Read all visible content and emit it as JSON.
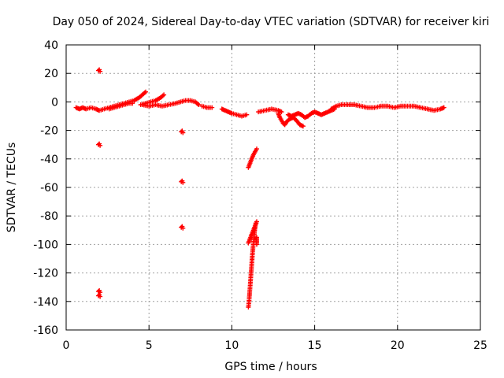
{
  "chart_data": {
    "type": "scatter",
    "title": "Day 050 of 2024, Sidereal Day-to-day VTEC variation (SDTVAR) for receiver kiri",
    "xlabel": "GPS time / hours",
    "ylabel": "SDTVAR / TECUs",
    "xlim": [
      0,
      25
    ],
    "ylim": [
      -160,
      40
    ],
    "xticks": [
      0,
      5,
      10,
      15,
      20,
      25
    ],
    "yticks": [
      40,
      20,
      0,
      -20,
      -40,
      -60,
      -80,
      -100,
      -120,
      -140,
      -160
    ],
    "grid": true,
    "marker": "+",
    "series_color": "#ff0000",
    "series": [
      {
        "name": "SDTVAR",
        "segments": [
          [
            [
              0.6,
              -4
            ],
            [
              0.8,
              -5
            ],
            [
              1.0,
              -4
            ],
            [
              1.2,
              -5
            ],
            [
              1.5,
              -4
            ],
            [
              1.8,
              -5
            ],
            [
              2.0,
              -6
            ],
            [
              2.3,
              -5
            ],
            [
              2.6,
              -4
            ],
            [
              2.9,
              -3
            ],
            [
              3.2,
              -2
            ],
            [
              3.5,
              -1
            ],
            [
              3.8,
              0
            ],
            [
              4.1,
              1
            ],
            [
              4.4,
              3
            ],
            [
              4.6,
              5
            ],
            [
              4.8,
              7
            ]
          ],
          [
            [
              2.6,
              -5
            ],
            [
              2.9,
              -4
            ],
            [
              3.2,
              -3
            ],
            [
              3.5,
              -2
            ],
            [
              3.8,
              -1
            ],
            [
              4.0,
              -1
            ]
          ],
          [
            [
              4.5,
              -2
            ],
            [
              4.8,
              -1
            ],
            [
              5.1,
              0
            ],
            [
              5.4,
              1
            ],
            [
              5.7,
              3
            ],
            [
              5.9,
              5
            ]
          ],
          [
            [
              4.6,
              -2
            ],
            [
              5.0,
              -3
            ],
            [
              5.4,
              -2
            ],
            [
              5.8,
              -3
            ],
            [
              6.2,
              -2
            ],
            [
              6.6,
              -1
            ],
            [
              6.9,
              0
            ],
            [
              7.2,
              1
            ],
            [
              7.5,
              1
            ],
            [
              7.8,
              0
            ],
            [
              8.0,
              -2
            ]
          ],
          [
            [
              8.2,
              -3
            ],
            [
              8.5,
              -4
            ],
            [
              8.8,
              -4
            ]
          ],
          [
            [
              9.4,
              -5
            ],
            [
              9.6,
              -6
            ],
            [
              9.8,
              -7
            ],
            [
              10.0,
              -8
            ],
            [
              10.3,
              -9
            ],
            [
              10.6,
              -10
            ],
            [
              10.9,
              -9
            ]
          ],
          [
            [
              11.6,
              -7
            ],
            [
              12.0,
              -6
            ],
            [
              12.4,
              -5
            ],
            [
              12.8,
              -6
            ],
            [
              13.0,
              -7
            ]
          ],
          [
            [
              12.8,
              -8
            ],
            [
              12.9,
              -11
            ],
            [
              13.0,
              -13
            ],
            [
              13.1,
              -15
            ],
            [
              13.2,
              -16
            ],
            [
              13.3,
              -14
            ],
            [
              13.5,
              -12
            ],
            [
              13.7,
              -11
            ],
            [
              13.9,
              -13
            ],
            [
              14.1,
              -16
            ],
            [
              14.3,
              -17
            ]
          ],
          [
            [
              13.4,
              -9
            ],
            [
              13.6,
              -10
            ],
            [
              13.8,
              -9
            ],
            [
              14.0,
              -8
            ],
            [
              14.2,
              -9
            ],
            [
              14.4,
              -11
            ],
            [
              14.6,
              -10
            ],
            [
              14.8,
              -8
            ],
            [
              15.0,
              -7
            ],
            [
              15.2,
              -8
            ],
            [
              15.4,
              -9
            ],
            [
              15.6,
              -8
            ],
            [
              15.8,
              -7
            ],
            [
              16.0,
              -6
            ],
            [
              16.2,
              -5
            ]
          ],
          [
            [
              16.0,
              -5
            ],
            [
              16.3,
              -3
            ],
            [
              16.6,
              -2
            ],
            [
              17.0,
              -2
            ],
            [
              17.4,
              -2
            ],
            [
              17.8,
              -3
            ],
            [
              18.2,
              -4
            ],
            [
              18.6,
              -4
            ],
            [
              19.0,
              -3
            ],
            [
              19.4,
              -3
            ],
            [
              19.8,
              -4
            ],
            [
              20.2,
              -3
            ],
            [
              20.6,
              -3
            ],
            [
              21.0,
              -3
            ],
            [
              21.4,
              -4
            ],
            [
              21.8,
              -5
            ],
            [
              22.2,
              -6
            ],
            [
              22.6,
              -5
            ],
            [
              22.8,
              -4
            ]
          ],
          [
            [
              11.0,
              -46
            ],
            [
              11.1,
              -43
            ],
            [
              11.2,
              -40
            ],
            [
              11.3,
              -37
            ],
            [
              11.4,
              -35
            ],
            [
              11.5,
              -33
            ]
          ],
          [
            [
              11.0,
              -144
            ],
            [
              11.05,
              -138
            ],
            [
              11.1,
              -130
            ],
            [
              11.15,
              -122
            ],
            [
              11.2,
              -114
            ],
            [
              11.25,
              -106
            ],
            [
              11.3,
              -99
            ],
            [
              11.35,
              -93
            ],
            [
              11.4,
              -88
            ],
            [
              11.45,
              -85
            ]
          ],
          [
            [
              11.0,
              -99
            ],
            [
              11.1,
              -96
            ],
            [
              11.2,
              -93
            ],
            [
              11.3,
              -90
            ],
            [
              11.4,
              -87
            ],
            [
              11.5,
              -84
            ]
          ],
          [
            [
              11.5,
              -95
            ],
            [
              11.5,
              -100
            ]
          ]
        ],
        "isolated_points": [
          [
            2.0,
            22
          ],
          [
            2.0,
            -30
          ],
          [
            2.0,
            -133
          ],
          [
            2.0,
            -136
          ],
          [
            7.0,
            -21
          ],
          [
            7.0,
            -56
          ],
          [
            7.0,
            -88
          ]
        ]
      }
    ]
  }
}
